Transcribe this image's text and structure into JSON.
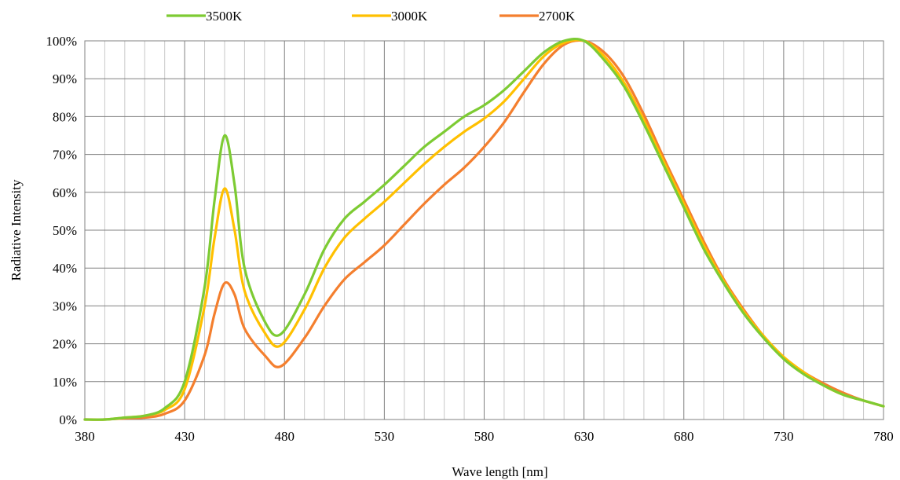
{
  "chart_data": {
    "type": "line",
    "title": "",
    "xlabel": "Wave length [nm]",
    "ylabel": "Radiative Intensity",
    "xlim": [
      380,
      780
    ],
    "ylim": [
      0,
      100
    ],
    "x_ticks": [
      380,
      430,
      480,
      530,
      580,
      630,
      680,
      730,
      780
    ],
    "x_tick_labels": [
      "380",
      "430",
      "480",
      "530",
      "580",
      "630",
      "680",
      "730",
      "780"
    ],
    "y_ticks": [
      0,
      10,
      20,
      30,
      40,
      50,
      60,
      70,
      80,
      90,
      100
    ],
    "y_tick_labels": [
      "0%",
      "10%",
      "20%",
      "30%",
      "40%",
      "50%",
      "60%",
      "70%",
      "80%",
      "90%",
      "100%"
    ],
    "minor_x_step": 10,
    "grid": true,
    "legend_position": "top",
    "x": [
      380,
      390,
      400,
      410,
      420,
      430,
      440,
      445,
      450,
      455,
      460,
      470,
      478,
      490,
      500,
      510,
      520,
      530,
      540,
      550,
      560,
      570,
      580,
      590,
      600,
      610,
      620,
      630,
      640,
      650,
      660,
      670,
      680,
      690,
      700,
      710,
      720,
      730,
      740,
      750,
      760,
      770,
      780
    ],
    "series": [
      {
        "name": "3500K",
        "color": "#7dcb33",
        "values": [
          0,
          0,
          0.5,
          1,
          3,
          10,
          35,
          58,
          75,
          62,
          40,
          26,
          22.5,
          33,
          45,
          53,
          57.5,
          62,
          67,
          72,
          76,
          80,
          83,
          87,
          92,
          97,
          100,
          100,
          95,
          88,
          78,
          67,
          56,
          45,
          36,
          28,
          21.5,
          16,
          12,
          9,
          6.5,
          5,
          3.5
        ]
      },
      {
        "name": "3000K",
        "color": "#ffc000",
        "values": [
          0,
          0,
          0.5,
          1,
          2.5,
          8,
          30,
          48,
          61,
          50,
          34,
          23,
          19.5,
          29,
          40,
          48,
          53,
          57.5,
          62.5,
          67.5,
          72,
          76,
          79.5,
          84,
          90,
          96,
          99.5,
          100,
          96,
          89,
          79,
          68,
          57,
          46,
          36.5,
          28.5,
          22,
          16.5,
          12.5,
          9,
          6.5,
          5,
          3.5
        ]
      },
      {
        "name": "2700K",
        "color": "#f47f2e",
        "values": [
          0,
          0,
          0.3,
          0.5,
          1.5,
          5,
          17,
          28,
          36,
          33,
          24,
          17,
          14,
          21.5,
          30,
          37,
          41.5,
          46,
          51.5,
          57,
          62,
          66.5,
          72,
          78.5,
          86.5,
          94,
          99,
          100,
          97,
          90.5,
          80.5,
          69,
          58,
          47,
          37,
          29,
          22,
          16.5,
          12.5,
          9.5,
          7,
          5,
          3.5
        ]
      }
    ]
  }
}
